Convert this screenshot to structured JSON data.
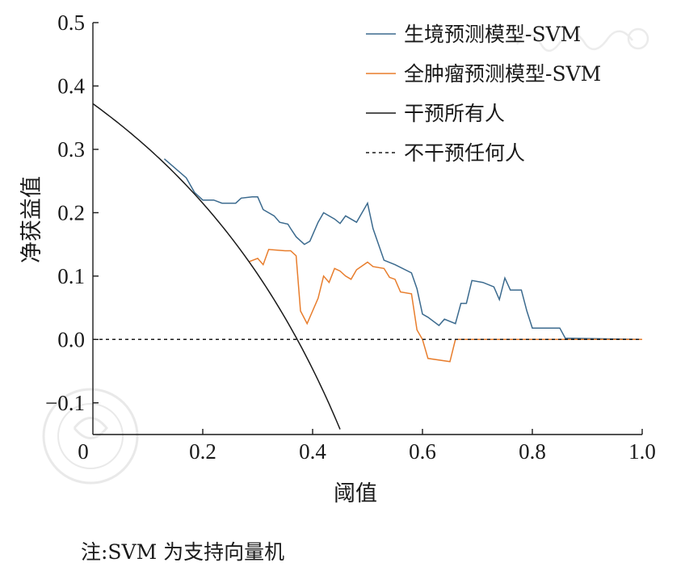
{
  "chart_data": {
    "type": "line",
    "xlabel": "阈值",
    "ylabel": "净获益值",
    "xlim": [
      0,
      1.0
    ],
    "ylim": [
      -0.15,
      0.5
    ],
    "xticks": [
      "0",
      "0.2",
      "0.4",
      "0.6",
      "0.8",
      "1.0"
    ],
    "yticks": [
      "0.5",
      "0.4",
      "0.3",
      "0.2",
      "0.1",
      "0.0",
      "-0.1"
    ],
    "legend_position": "top-right",
    "series": [
      {
        "name": "生境预测模型-SVM",
        "color": "#3b6a8e",
        "style": "solid",
        "points": [
          [
            0.13,
            0.285
          ],
          [
            0.17,
            0.255
          ],
          [
            0.185,
            0.232
          ],
          [
            0.2,
            0.22
          ],
          [
            0.22,
            0.22
          ],
          [
            0.235,
            0.215
          ],
          [
            0.26,
            0.215
          ],
          [
            0.27,
            0.223
          ],
          [
            0.29,
            0.225
          ],
          [
            0.3,
            0.225
          ],
          [
            0.31,
            0.205
          ],
          [
            0.33,
            0.195
          ],
          [
            0.34,
            0.185
          ],
          [
            0.355,
            0.182
          ],
          [
            0.36,
            0.175
          ],
          [
            0.37,
            0.162
          ],
          [
            0.385,
            0.15
          ],
          [
            0.395,
            0.155
          ],
          [
            0.41,
            0.185
          ],
          [
            0.42,
            0.2
          ],
          [
            0.44,
            0.19
          ],
          [
            0.45,
            0.183
          ],
          [
            0.46,
            0.195
          ],
          [
            0.48,
            0.185
          ],
          [
            0.49,
            0.2
          ],
          [
            0.5,
            0.215
          ],
          [
            0.51,
            0.175
          ],
          [
            0.53,
            0.125
          ],
          [
            0.55,
            0.118
          ],
          [
            0.58,
            0.105
          ],
          [
            0.59,
            0.08
          ],
          [
            0.6,
            0.04
          ],
          [
            0.61,
            0.035
          ],
          [
            0.63,
            0.022
          ],
          [
            0.64,
            0.032
          ],
          [
            0.66,
            0.025
          ],
          [
            0.67,
            0.057
          ],
          [
            0.68,
            0.057
          ],
          [
            0.69,
            0.093
          ],
          [
            0.71,
            0.09
          ],
          [
            0.73,
            0.083
          ],
          [
            0.74,
            0.063
          ],
          [
            0.75,
            0.097
          ],
          [
            0.76,
            0.078
          ],
          [
            0.78,
            0.078
          ],
          [
            0.79,
            0.045
          ],
          [
            0.8,
            0.018
          ],
          [
            0.85,
            0.018
          ],
          [
            0.86,
            0.002
          ],
          [
            1.0,
            0.0
          ]
        ]
      },
      {
        "name": "全肿瘤预测模型-SVM",
        "color": "#e87d2c",
        "style": "solid",
        "points": [
          [
            0.285,
            0.123
          ],
          [
            0.3,
            0.128
          ],
          [
            0.31,
            0.118
          ],
          [
            0.32,
            0.142
          ],
          [
            0.35,
            0.14
          ],
          [
            0.36,
            0.14
          ],
          [
            0.37,
            0.132
          ],
          [
            0.378,
            0.045
          ],
          [
            0.39,
            0.025
          ],
          [
            0.4,
            0.045
          ],
          [
            0.41,
            0.065
          ],
          [
            0.42,
            0.1
          ],
          [
            0.43,
            0.09
          ],
          [
            0.44,
            0.112
          ],
          [
            0.45,
            0.108
          ],
          [
            0.46,
            0.1
          ],
          [
            0.47,
            0.095
          ],
          [
            0.48,
            0.11
          ],
          [
            0.5,
            0.122
          ],
          [
            0.51,
            0.115
          ],
          [
            0.53,
            0.112
          ],
          [
            0.54,
            0.098
          ],
          [
            0.55,
            0.095
          ],
          [
            0.56,
            0.075
          ],
          [
            0.58,
            0.072
          ],
          [
            0.59,
            0.015
          ],
          [
            0.6,
            0.0
          ],
          [
            0.61,
            -0.03
          ],
          [
            0.65,
            -0.035
          ],
          [
            0.66,
            0.0
          ],
          [
            1.0,
            0.0
          ]
        ]
      },
      {
        "name": "干预所有人",
        "color": "#1a1a1a",
        "style": "solid",
        "curve": "treat-all",
        "prevalence": 0.372,
        "x_range": [
          0,
          0.451
        ]
      },
      {
        "name": "不干预任何人",
        "color": "#1a1a1a",
        "style": "dashed",
        "points": [
          [
            0,
            0
          ],
          [
            1.0,
            0
          ]
        ]
      }
    ]
  },
  "note": "注:SVM 为支持向量机"
}
